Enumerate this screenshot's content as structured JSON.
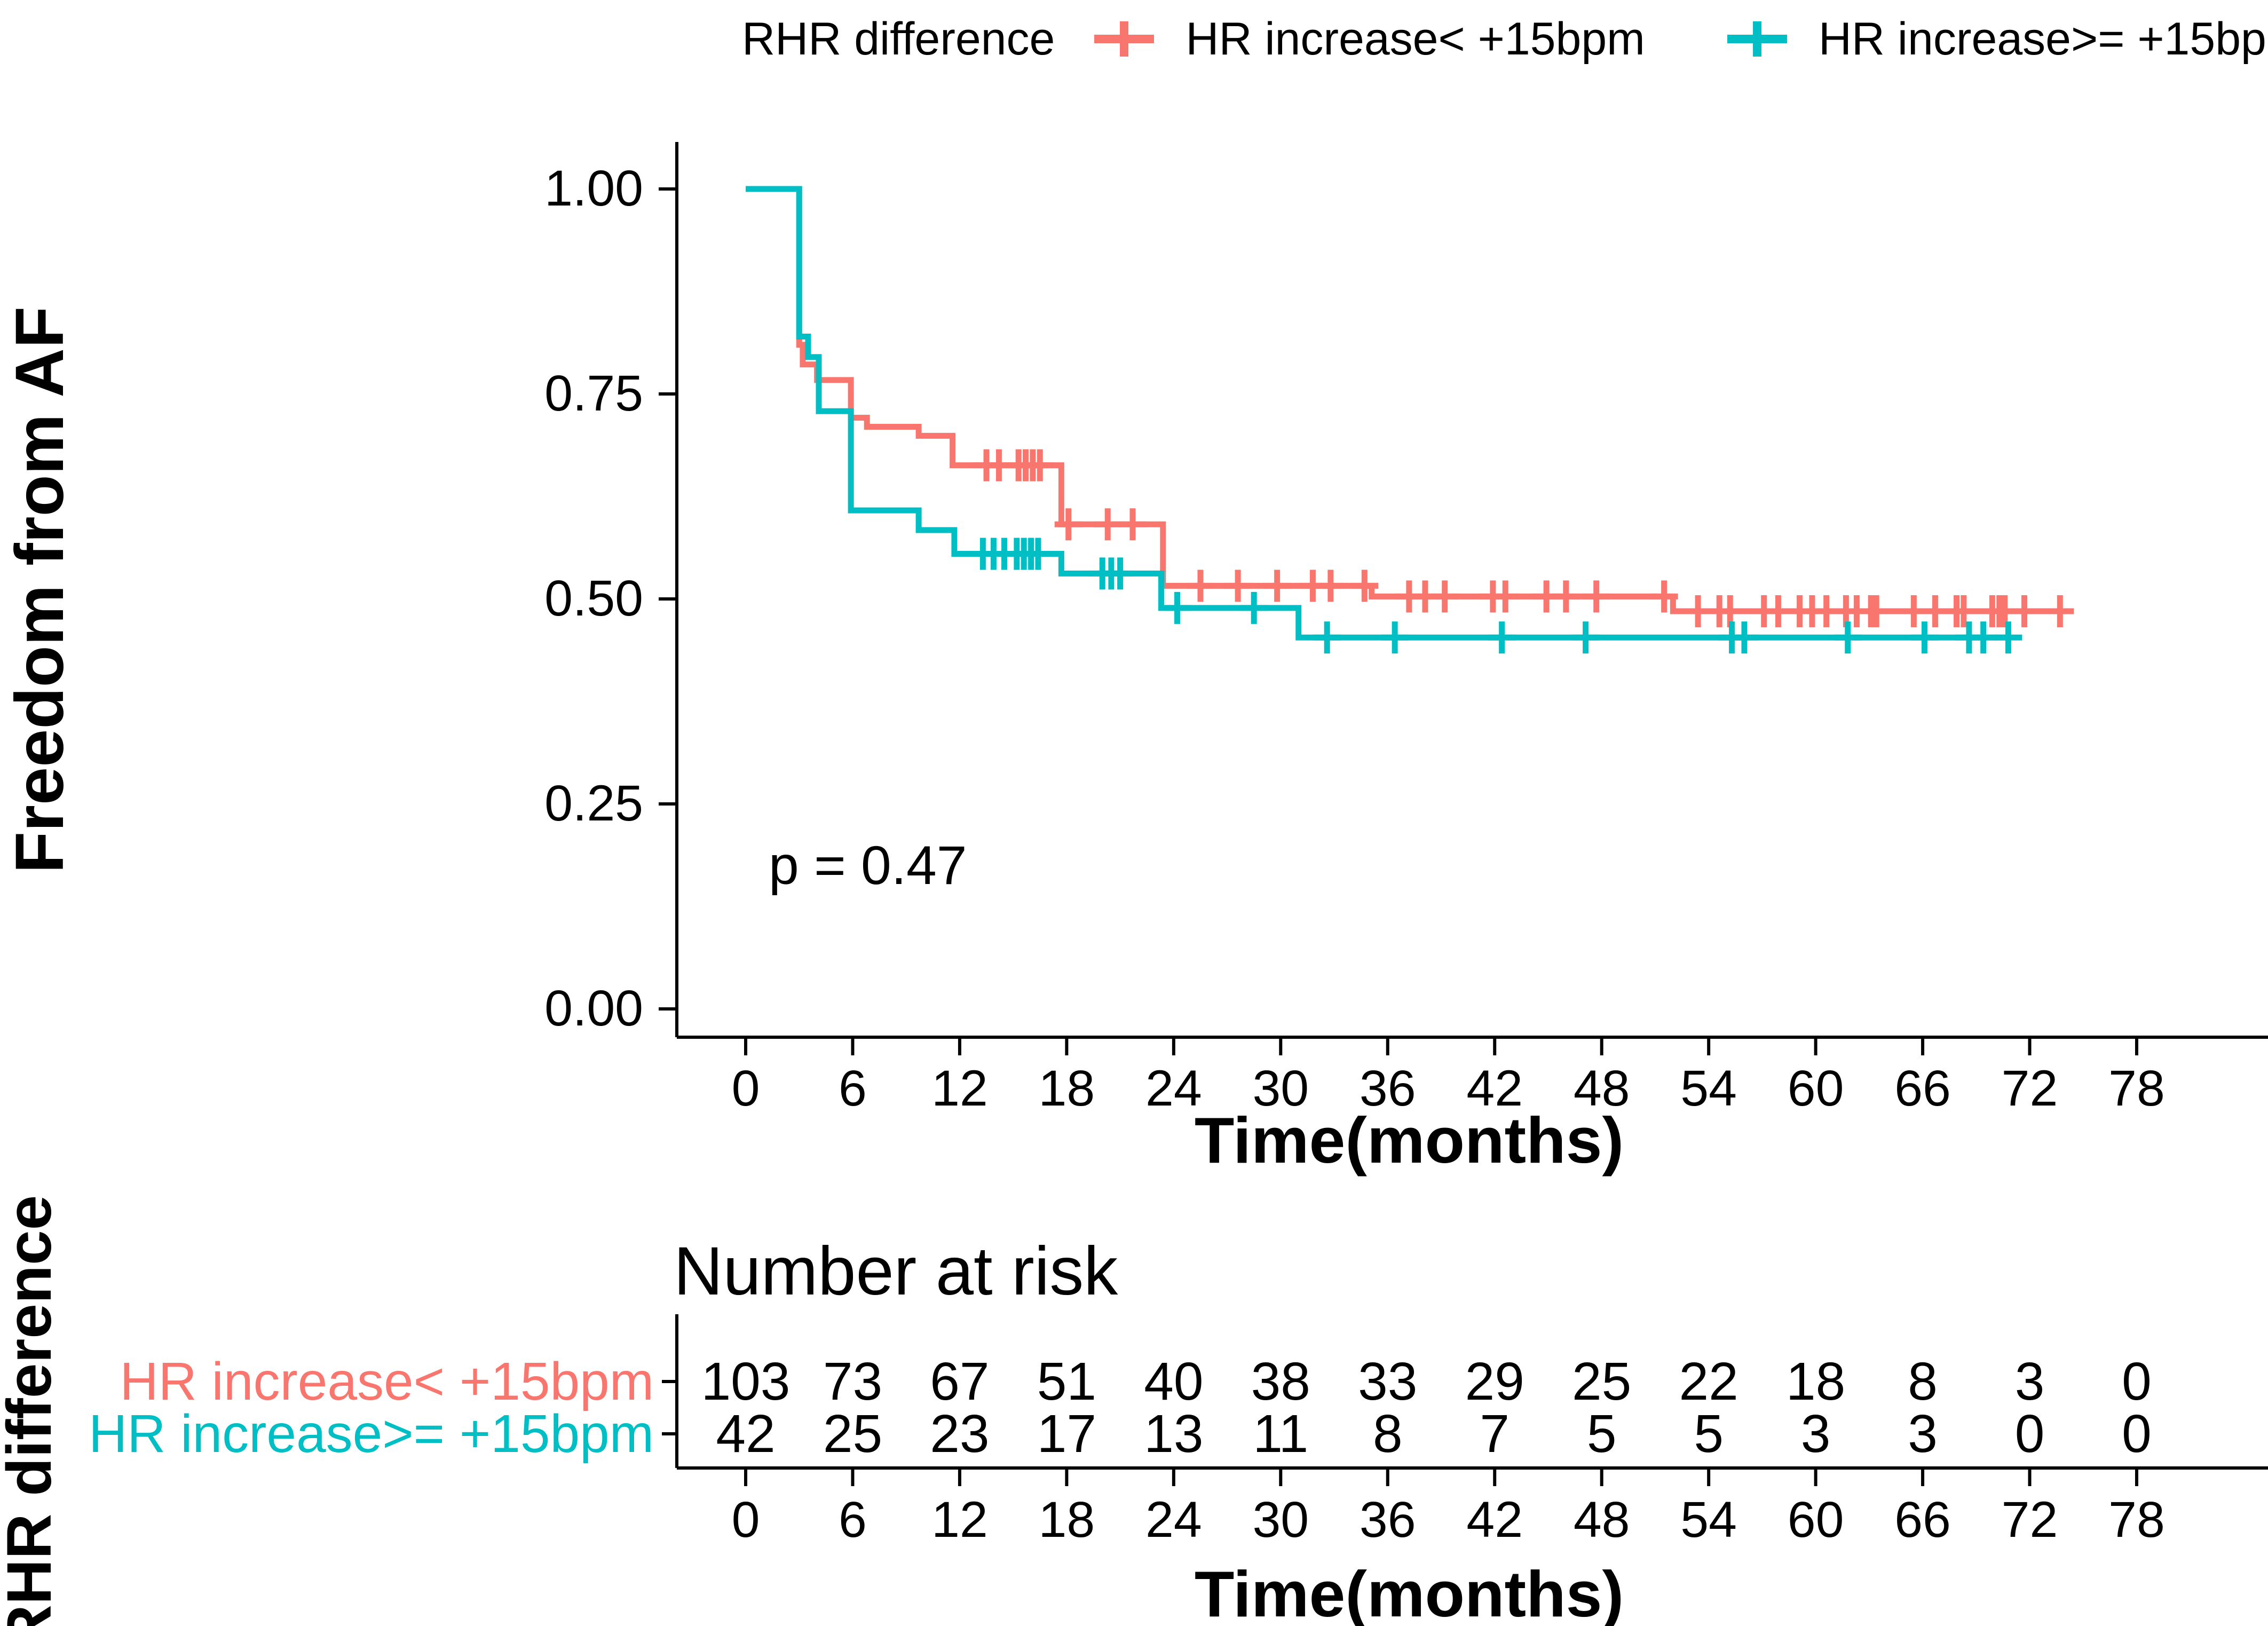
{
  "ui": {
    "legend_title": "RHR difference",
    "p_value_label": "p = 0.47",
    "risk_table_title": "Number at risk"
  },
  "chart_data": {
    "type": "line",
    "subtype": "kaplan-meier-survival",
    "title": "",
    "xlabel": "Time(months)",
    "ylabel": "Freedom from AF",
    "xlim": [
      0,
      80
    ],
    "ylim": [
      0,
      1
    ],
    "grid": false,
    "legend_position": "top",
    "legend_title": "RHR difference",
    "p_value": 0.47,
    "x_ticks": [
      0,
      6,
      12,
      18,
      24,
      30,
      36,
      42,
      48,
      54,
      60,
      66,
      72,
      78
    ],
    "y_ticks": [
      {
        "value": 0.0,
        "label": "0.00"
      },
      {
        "value": 0.25,
        "label": "0.25"
      },
      {
        "value": 0.5,
        "label": "0.50"
      },
      {
        "value": 0.75,
        "label": "0.75"
      },
      {
        "value": 1.0,
        "label": "1.00"
      }
    ],
    "series": [
      {
        "name": "HR increase< +15bpm",
        "color": "#F8766D",
        "steps": [
          [
            0,
            1.0
          ],
          [
            3,
            1.0
          ],
          [
            3,
            0.81
          ],
          [
            3.2,
            0.81
          ],
          [
            3.2,
            0.786
          ],
          [
            4.0,
            0.786
          ],
          [
            4.0,
            0.767
          ],
          [
            5.9,
            0.767
          ],
          [
            5.9,
            0.721
          ],
          [
            6.8,
            0.721
          ],
          [
            6.8,
            0.71
          ],
          [
            9.7,
            0.71
          ],
          [
            9.7,
            0.699
          ],
          [
            11.6,
            0.699
          ],
          [
            11.6,
            0.663
          ],
          [
            17.7,
            0.663
          ],
          [
            17.7,
            0.591
          ],
          [
            23.4,
            0.591
          ],
          [
            23.4,
            0.516
          ],
          [
            35.1,
            0.516
          ],
          [
            35.1,
            0.503
          ],
          [
            52,
            0.503
          ],
          [
            52,
            0.485
          ],
          [
            74.3,
            0.485
          ]
        ],
        "censor_times": [
          13.5,
          14.2,
          15.3,
          15.7,
          16.1,
          16.5,
          18.1,
          20.3,
          21.7,
          25.5,
          27.6,
          29.8,
          31.8,
          32.8,
          34.7,
          37.2,
          38.1,
          39.2,
          41.9,
          42.6,
          44.9,
          46.0,
          47.7,
          51.5,
          53.4,
          54.6,
          55.2,
          57.1,
          57.9,
          59.1,
          59.8,
          60.6,
          61.7,
          62.3,
          63.1,
          63.4,
          65.5,
          66.7,
          67.9,
          68.3,
          69.9,
          70.3,
          70.6,
          71.7,
          73.7
        ]
      },
      {
        "name": "HR increase>= +15bpm",
        "color": "#00BFC4",
        "steps": [
          [
            0,
            1.0
          ],
          [
            3,
            1.0
          ],
          [
            3,
            0.82
          ],
          [
            3.5,
            0.82
          ],
          [
            3.5,
            0.795
          ],
          [
            4.1,
            0.795
          ],
          [
            4.1,
            0.729
          ],
          [
            5.9,
            0.729
          ],
          [
            5.9,
            0.608
          ],
          [
            9.7,
            0.608
          ],
          [
            9.7,
            0.584
          ],
          [
            11.7,
            0.584
          ],
          [
            11.7,
            0.555
          ],
          [
            17.7,
            0.555
          ],
          [
            17.7,
            0.531
          ],
          [
            23.3,
            0.531
          ],
          [
            23.3,
            0.489
          ],
          [
            31,
            0.489
          ],
          [
            31,
            0.453
          ],
          [
            70.8,
            0.453
          ]
        ],
        "censor_times": [
          13.3,
          13.9,
          14.5,
          15.2,
          15.6,
          16.0,
          16.4,
          20.0,
          20.5,
          21.0,
          24.2,
          28.5,
          32.6,
          36.4,
          42.4,
          47.1,
          55.3,
          56.0,
          61.8,
          66.1,
          68.6,
          69.4,
          70.8
        ]
      }
    ],
    "risk_table": {
      "title": "Number at risk",
      "group_axis_label": "RHR difference",
      "xlabel": "Time(months)",
      "time_points": [
        0,
        6,
        12,
        18,
        24,
        30,
        36,
        42,
        48,
        54,
        60,
        66,
        72,
        78
      ],
      "rows": [
        {
          "name": "HR increase< +15bpm",
          "color": "#F8766D",
          "counts": [
            103,
            73,
            67,
            51,
            40,
            38,
            33,
            29,
            25,
            22,
            18,
            8,
            3,
            0
          ]
        },
        {
          "name": "HR increase>= +15bpm",
          "color": "#00BFC4",
          "counts": [
            42,
            25,
            23,
            17,
            13,
            11,
            8,
            7,
            5,
            5,
            3,
            3,
            0,
            0
          ]
        }
      ]
    }
  }
}
